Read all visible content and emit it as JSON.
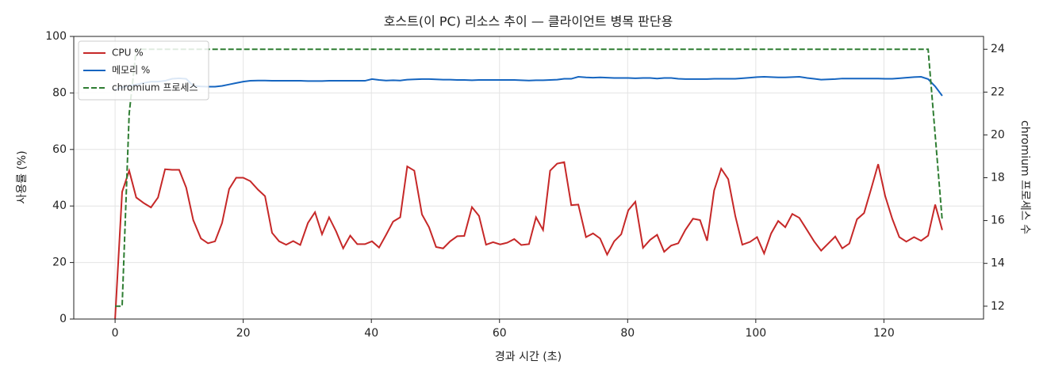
{
  "chart_data": {
    "type": "line",
    "title": "호스트(이 PC) 리소스 추이 — 클라이언트 병목 판단용",
    "x_label": "경과 시간 (초)",
    "y_label": "사용률 (%)",
    "y2_label": "chromium 프로세스 수",
    "x": [
      0,
      1.1,
      2.2,
      3.3,
      4.5,
      5.6,
      6.7,
      7.8,
      8.9,
      10.0,
      11.1,
      12.2,
      13.4,
      14.5,
      15.6,
      16.7,
      17.8,
      18.9,
      20.0,
      21.1,
      22.3,
      23.4,
      24.5,
      25.6,
      26.7,
      27.8,
      28.9,
      30.1,
      31.2,
      32.3,
      33.4,
      34.5,
      35.6,
      36.7,
      37.8,
      39.0,
      40.1,
      41.2,
      42.3,
      43.4,
      44.5,
      45.6,
      46.7,
      47.9,
      49.0,
      50.1,
      51.2,
      52.3,
      53.4,
      54.5,
      55.7,
      56.8,
      57.9,
      59.0,
      60.1,
      61.2,
      62.3,
      63.4,
      64.6,
      65.7,
      66.8,
      67.9,
      69.0,
      70.1,
      71.2,
      72.3,
      73.5,
      74.6,
      75.7,
      76.8,
      77.9,
      79.0,
      80.1,
      81.2,
      82.4,
      83.5,
      84.6,
      85.7,
      86.8,
      87.9,
      89.0,
      90.2,
      91.3,
      92.4,
      93.5,
      94.6,
      95.7,
      96.8,
      97.9,
      99.1,
      100.2,
      101.3,
      102.4,
      103.5,
      104.6,
      105.7,
      106.8,
      108.0,
      109.1,
      110.2,
      111.3,
      112.4,
      113.5,
      114.6,
      115.8,
      116.9,
      118.0,
      119.1,
      120.2,
      121.3,
      122.4,
      123.5,
      124.7,
      125.8,
      126.9,
      128.0,
      129.1
    ],
    "series": [
      {
        "name": "CPU %",
        "color": "#c62828",
        "linestyle": "solid",
        "axis": "y",
        "values": [
          0,
          45,
          52.5,
          43,
          41,
          39.5,
          43,
          53,
          52.8,
          52.8,
          46.5,
          35,
          28.5,
          26.8,
          27.5,
          34,
          46,
          50,
          50,
          48.8,
          45.8,
          43.5,
          30.5,
          27.5,
          26.3,
          27.6,
          26.2,
          34,
          37.8,
          30,
          36,
          31,
          25,
          29.5,
          26.5,
          26.5,
          27.5,
          25.3,
          29.8,
          34.5,
          36,
          54,
          52.5,
          37,
          32.5,
          25.5,
          25,
          27.5,
          29.3,
          29.4,
          39.6,
          36.5,
          26.3,
          27.2,
          26.4,
          27,
          28.3,
          26.2,
          26.5,
          36,
          31.5,
          52.5,
          55,
          55.5,
          40.3,
          40.5,
          29,
          30.3,
          28.5,
          22.8,
          27.5,
          30,
          38.5,
          41.5,
          25.2,
          28,
          29.8,
          23.8,
          26,
          26.8,
          31.5,
          35.5,
          35,
          27.7,
          45.5,
          53.2,
          49.5,
          36.5,
          26.3,
          27.3,
          29,
          23.2,
          30.3,
          34.7,
          32.5,
          37.2,
          35.8,
          31.5,
          27.5,
          24.2,
          26.7,
          29.2,
          25,
          26.7,
          35.3,
          37.5,
          46,
          54.8,
          43.5,
          35.5,
          29,
          27.4,
          29,
          27.7,
          29.5,
          40.5,
          31.5
        ]
      },
      {
        "name": "메모리 %",
        "color": "#1565c0",
        "linestyle": "solid",
        "axis": "y",
        "values": [
          81,
          82,
          82.5,
          83,
          83.5,
          84,
          84,
          84.3,
          85,
          85.2,
          85,
          82.5,
          82.3,
          82.2,
          82.2,
          82.5,
          83,
          83.5,
          84,
          84.3,
          84.4,
          84.4,
          84.3,
          84.3,
          84.3,
          84.3,
          84.3,
          84.2,
          84.2,
          84.2,
          84.3,
          84.3,
          84.3,
          84.3,
          84.3,
          84.3,
          84.9,
          84.6,
          84.4,
          84.5,
          84.4,
          84.7,
          84.8,
          84.9,
          84.9,
          84.8,
          84.7,
          84.7,
          84.6,
          84.6,
          84.5,
          84.6,
          84.6,
          84.6,
          84.6,
          84.6,
          84.6,
          84.5,
          84.4,
          84.5,
          84.5,
          84.6,
          84.7,
          85,
          85,
          85.7,
          85.5,
          85.4,
          85.5,
          85.4,
          85.3,
          85.3,
          85.3,
          85.2,
          85.3,
          85.3,
          85.1,
          85.3,
          85.3,
          85,
          84.9,
          84.9,
          84.9,
          84.9,
          85,
          85,
          85,
          85,
          85.2,
          85.4,
          85.6,
          85.7,
          85.6,
          85.5,
          85.5,
          85.6,
          85.7,
          85.3,
          85,
          84.7,
          84.8,
          84.9,
          85.1,
          85.1,
          85.1,
          85.1,
          85.1,
          85.1,
          85,
          85,
          85.2,
          85.4,
          85.6,
          85.7,
          84.9,
          82.3,
          79
        ]
      },
      {
        "name": "chromium 프로세스",
        "color": "#2e7d32",
        "linestyle": "dashed",
        "axis": "y2",
        "values": [
          12,
          12,
          21,
          24,
          24,
          24,
          24,
          24,
          24,
          24,
          24,
          24,
          24,
          24,
          24,
          24,
          24,
          24,
          24,
          24,
          24,
          24,
          24,
          24,
          24,
          24,
          24,
          24,
          24,
          24,
          24,
          24,
          24,
          24,
          24,
          24,
          24,
          24,
          24,
          24,
          24,
          24,
          24,
          24,
          24,
          24,
          24,
          24,
          24,
          24,
          24,
          24,
          24,
          24,
          24,
          24,
          24,
          24,
          24,
          24,
          24,
          24,
          24,
          24,
          24,
          24,
          24,
          24,
          24,
          24,
          24,
          24,
          24,
          24,
          24,
          24,
          24,
          24,
          24,
          24,
          24,
          24,
          24,
          24,
          24,
          24,
          24,
          24,
          24,
          24,
          24,
          24,
          24,
          24,
          24,
          24,
          24,
          24,
          24,
          24,
          24,
          24,
          24,
          24,
          24,
          24,
          24,
          24,
          24,
          24,
          24,
          24,
          24,
          24,
          24,
          20,
          16
        ]
      }
    ],
    "xlim": [
      -6.45,
      135.55
    ],
    "xticks": [
      0,
      20,
      40,
      60,
      80,
      100,
      120
    ],
    "ylim": [
      0,
      100
    ],
    "yticks": [
      0,
      20,
      40,
      60,
      80,
      100
    ],
    "y2lim": [
      11.4,
      24.6
    ],
    "y2ticks": [
      12,
      14,
      16,
      18,
      20,
      22,
      24
    ],
    "grid": true,
    "legend": "upper left"
  }
}
